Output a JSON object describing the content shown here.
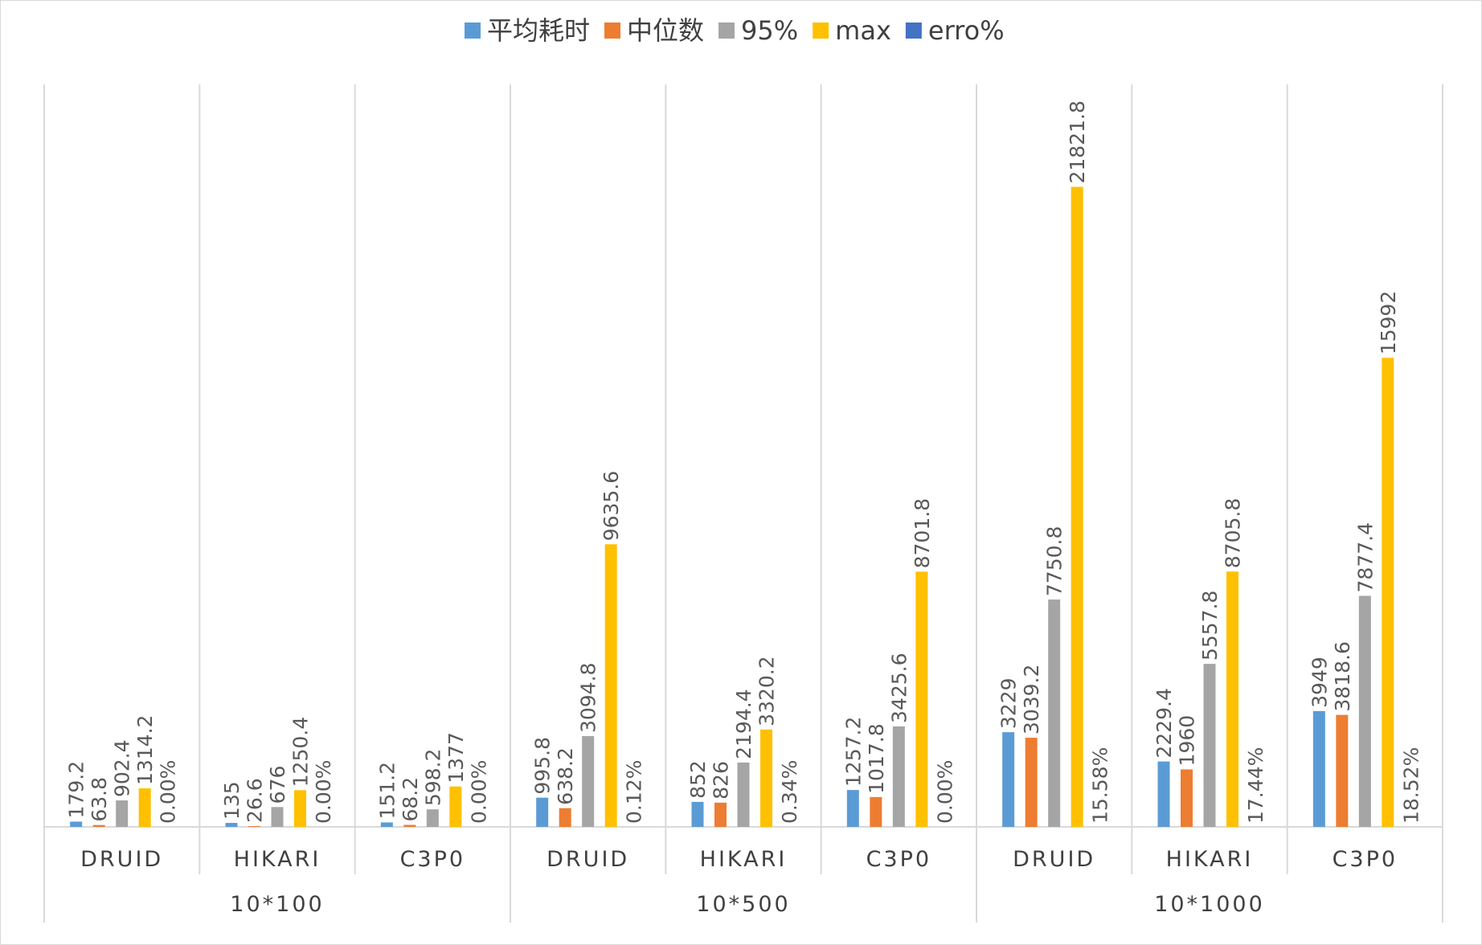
{
  "chart_data": {
    "type": "bar",
    "groups": [
      {
        "label": "10*100",
        "categories": [
          "DRUID",
          "HIKARI",
          "C3P0"
        ]
      },
      {
        "label": "10*500",
        "categories": [
          "DRUID",
          "HIKARI",
          "C3P0"
        ]
      },
      {
        "label": "10*1000",
        "categories": [
          "DRUID",
          "HIKARI",
          "C3P0"
        ]
      }
    ],
    "categories": [
      "DRUID",
      "HIKARI",
      "C3P0",
      "DRUID",
      "HIKARI",
      "C3P0",
      "DRUID",
      "HIKARI",
      "C3P0"
    ],
    "series": [
      {
        "name": "平均耗时",
        "color": "#5b9bd5",
        "values": [
          179.2,
          135,
          151.2,
          995.8,
          852,
          1257.2,
          3229,
          2229.4,
          3949
        ],
        "labels": [
          "179.2",
          "135",
          "151.2",
          "995.8",
          "852",
          "1257.2",
          "3229",
          "2229.4",
          "3949"
        ]
      },
      {
        "name": "中位数",
        "color": "#ed7d31",
        "values": [
          63.8,
          26.6,
          68.2,
          638.2,
          826,
          1017.8,
          3039.2,
          1960,
          3818.6
        ],
        "labels": [
          "63.8",
          "26.6",
          "68.2",
          "638.2",
          "826",
          "1017.8",
          "3039.2",
          "1960",
          "3818.6"
        ]
      },
      {
        "name": "95%",
        "color": "#a5a5a5",
        "values": [
          902.4,
          676,
          598.2,
          3094.8,
          2194.4,
          3425.6,
          7750.8,
          5557.8,
          7877.4
        ],
        "labels": [
          "902.4",
          "676",
          "598.2",
          "3094.8",
          "2194.4",
          "3425.6",
          "7750.8",
          "5557.8",
          "7877.4"
        ]
      },
      {
        "name": "max",
        "color": "#ffc000",
        "values": [
          1314.2,
          1250.4,
          1377,
          9635.6,
          3320.2,
          8701.8,
          21821.8,
          8705.8,
          15992
        ],
        "labels": [
          "1314.2",
          "1250.4",
          "1377",
          "9635.6",
          "3320.2",
          "8701.8",
          "21821.8",
          "8705.8",
          "15992"
        ]
      },
      {
        "name": "erro%",
        "color": "#4472c4",
        "values": [
          0.0,
          0.0,
          0.0,
          0.12,
          0.34,
          0.0,
          15.58,
          17.44,
          18.52
        ],
        "labels": [
          "0.00%",
          "0.00%",
          "0.00%",
          "0.12%",
          "0.34%",
          "0.00%",
          "15.58%",
          "17.44%",
          "18.52%"
        ]
      }
    ],
    "ylim": [
      0,
      25000
    ],
    "legend": "top",
    "grid": false
  }
}
